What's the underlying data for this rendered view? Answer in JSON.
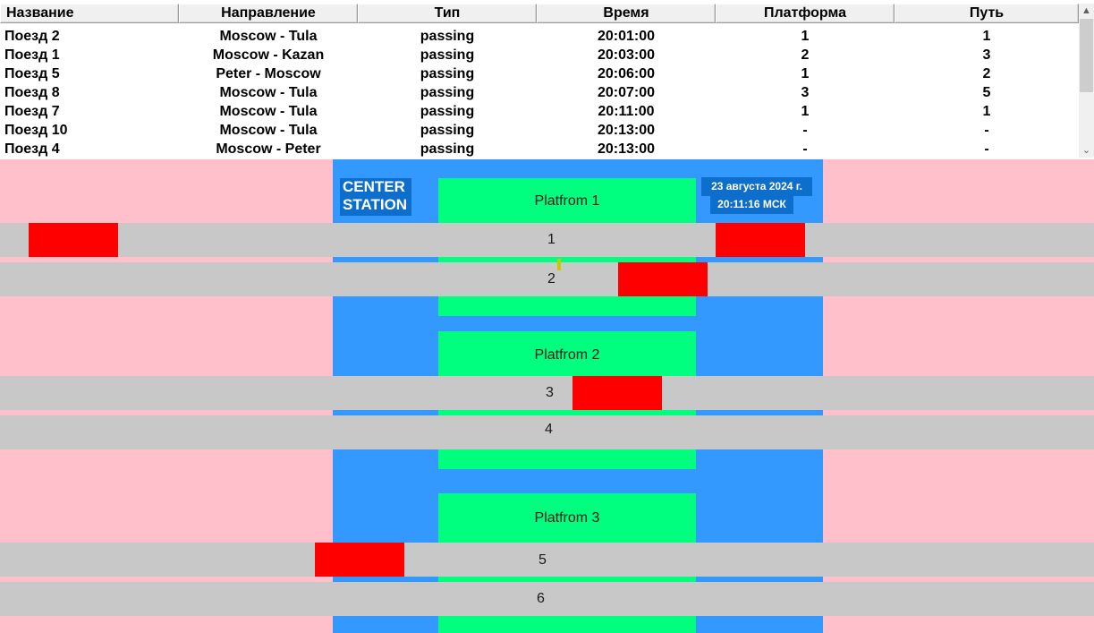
{
  "table": {
    "columns": [
      "Название",
      "Направление",
      "Тип",
      "Время",
      "Платформа",
      "Путь"
    ],
    "rows": [
      [
        "Поезд 2",
        "Moscow - Tula",
        "passing",
        "20:01:00",
        "1",
        "1"
      ],
      [
        "Поезд 1",
        "Moscow - Kazan",
        "passing",
        "20:03:00",
        "2",
        "3"
      ],
      [
        "Поезд 5",
        "Peter - Moscow",
        "passing",
        "20:06:00",
        "1",
        "2"
      ],
      [
        "Поезд 8",
        "Moscow - Tula",
        "passing",
        "20:07:00",
        "3",
        "5"
      ],
      [
        "Поезд 7",
        "Moscow - Tula",
        "passing",
        "20:11:00",
        "1",
        "1"
      ],
      [
        "Поезд 10",
        "Moscow - Tula",
        "passing",
        "20:13:00",
        "-",
        "-"
      ],
      [
        "Поезд 4",
        "Moscow - Peter",
        "passing",
        "20:13:00",
        "-",
        "-"
      ]
    ]
  },
  "scrollbar": {
    "up_icon": "▲",
    "down_icon": "⌄"
  },
  "station": {
    "name_line1": "CENTER",
    "name_line2": "STATION",
    "date": "23 августа 2024 г.",
    "time": "20:11:16 МСК"
  },
  "platforms": [
    {
      "label": "Platfrom 1"
    },
    {
      "label": "Platfrom 2"
    },
    {
      "label": "Platfrom 3"
    }
  ],
  "tracks": [
    {
      "label": "1"
    },
    {
      "label": "2"
    },
    {
      "label": "3"
    },
    {
      "label": "4"
    },
    {
      "label": "5"
    },
    {
      "label": "6"
    }
  ],
  "colors": {
    "background": "#ffc0cb",
    "station": "#3399ff",
    "platform": "#00ff7f",
    "track": "#c8c8c8",
    "train": "#ff0000",
    "label_box": "#0d6ecb"
  }
}
